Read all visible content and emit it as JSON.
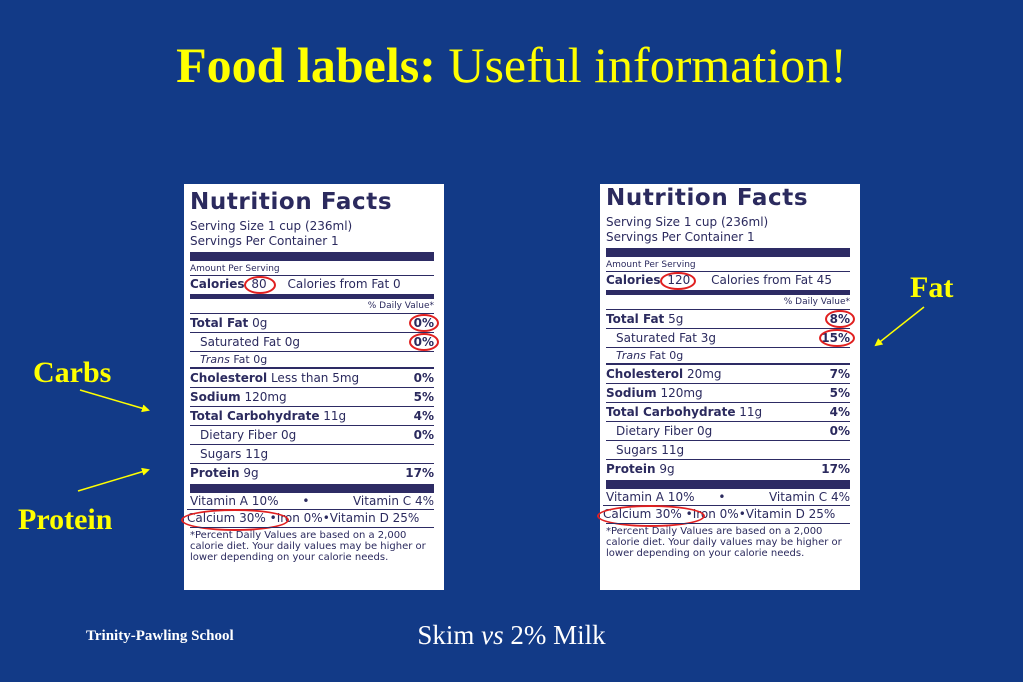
{
  "title": {
    "bold": "Food labels:",
    "rest": "Useful information!"
  },
  "labels": {
    "carbs": "Carbs",
    "protein": "Protein",
    "fat": "Fat"
  },
  "footer": {
    "school": "Trinity-Pawling School",
    "caption_pre": "Skim ",
    "caption_vs": "vs",
    "caption_post": " 2%  Milk"
  },
  "panels": [
    {
      "heading": "Nutrition Facts",
      "serving_size": "Serving Size 1 cup (236ml)",
      "servings": "Servings Per Container 1",
      "amount_per": "Amount Per Serving",
      "calories_label": "Calories",
      "calories": "80",
      "calories_fat": "Calories from Fat 0",
      "dv_header": "% Daily Value*",
      "total_fat": "Total Fat",
      "total_fat_amt": " 0g",
      "total_fat_dv": "0%",
      "sat_fat": "Saturated Fat 0g",
      "sat_fat_dv": "0%",
      "trans": "Trans",
      "trans_amt": " Fat 0g",
      "cholesterol": "Cholesterol",
      "cholesterol_amt": " Less than 5mg",
      "cholesterol_dv": "0%",
      "sodium": "Sodium",
      "sodium_amt": " 120mg",
      "sodium_dv": "5%",
      "carb": "Total Carbohydrate",
      "carb_amt": " 11g",
      "carb_dv": "4%",
      "fiber": "Dietary Fiber 0g",
      "fiber_dv": "0%",
      "sugars": "Sugars 11g",
      "protein": "Protein",
      "protein_amt": " 9g",
      "protein_dv": "17%",
      "vit_a": "Vitamin A 10%",
      "dot": "•",
      "vit_c": "Vitamin C 4%",
      "calcium": "Calcium 30%",
      "iron": "•Iron 0%",
      "vit_d": "•Vitamin D 25%",
      "footnote": "*Percent Daily Values are based on a 2,000 calorie diet.  Your daily values may be higher or lower depending on your calorie needs."
    },
    {
      "heading": "Nutrition Facts",
      "serving_size": "Serving Size 1 cup (236ml)",
      "servings": "Servings Per Container 1",
      "amount_per": "Amount Per Serving",
      "calories_label": "Calories",
      "calories": "120",
      "calories_fat": "Calories from Fat 45",
      "dv_header": "% Daily Value*",
      "total_fat": "Total Fat",
      "total_fat_amt": " 5g",
      "total_fat_dv": "8%",
      "sat_fat": "Saturated Fat 3g",
      "sat_fat_dv": "15%",
      "trans": "Trans",
      "trans_amt": " Fat 0g",
      "cholesterol": "Cholesterol",
      "cholesterol_amt": " 20mg",
      "cholesterol_dv": "7%",
      "sodium": "Sodium",
      "sodium_amt": " 120mg",
      "sodium_dv": "5%",
      "carb": "Total Carbohydrate",
      "carb_amt": " 11g",
      "carb_dv": "4%",
      "fiber": "Dietary Fiber 0g",
      "fiber_dv": "0%",
      "sugars": "Sugars 11g",
      "protein": "Protein",
      "protein_amt": " 9g",
      "protein_dv": "17%",
      "vit_a": "Vitamin A 10%",
      "dot": "•",
      "vit_c": "Vitamin C 4%",
      "calcium": "Calcium 30%",
      "iron": "•Iron 0%",
      "vit_d": "•Vitamin D 25%",
      "footnote": "*Percent Daily Values are based on a 2,000 calorie diet.  Your daily values may be higher or lower depending on your calorie needs."
    }
  ]
}
